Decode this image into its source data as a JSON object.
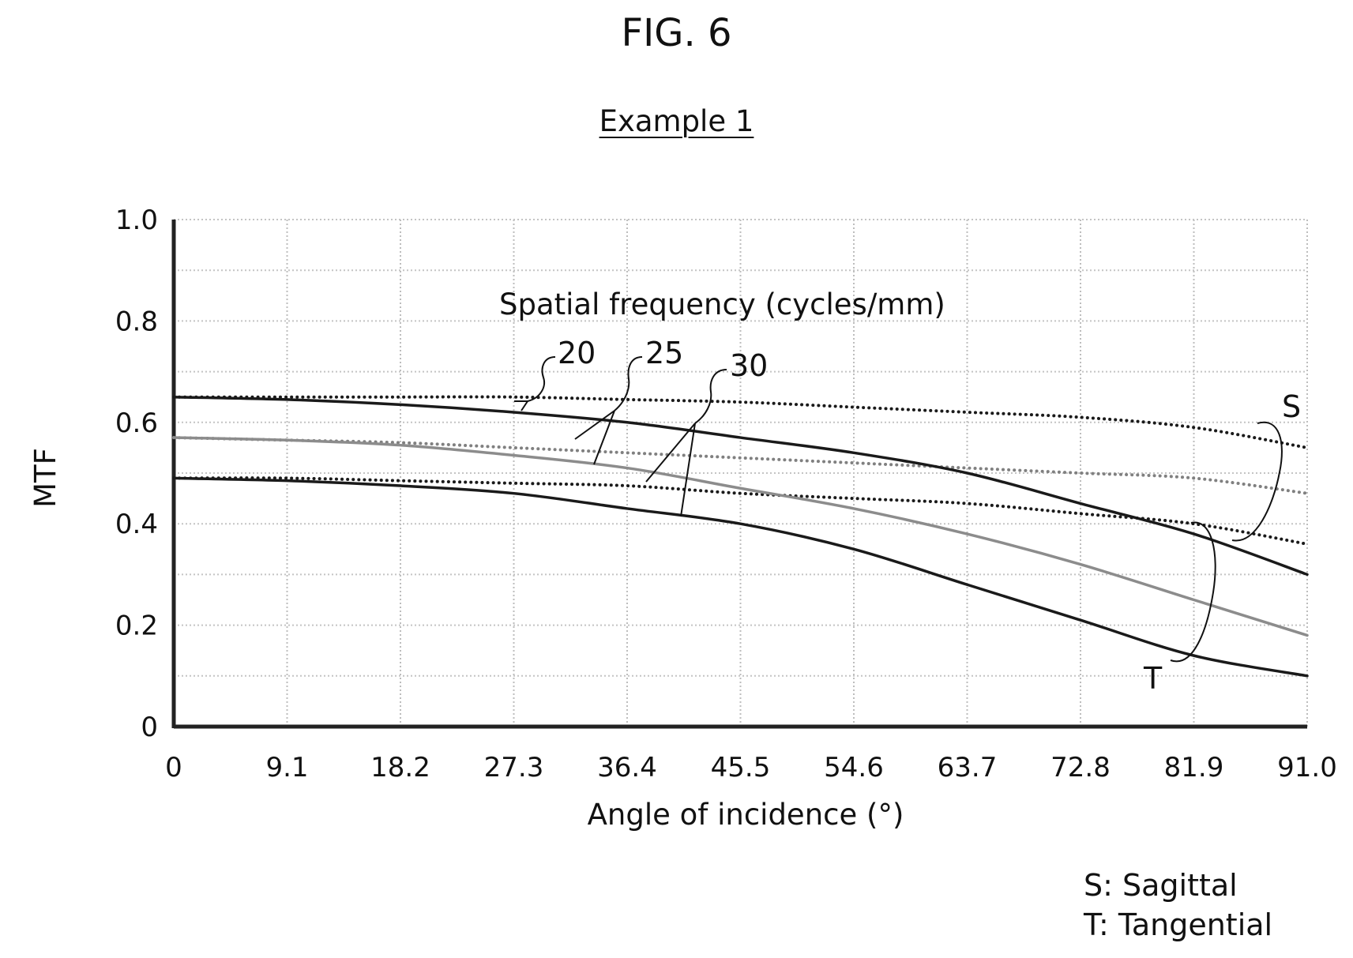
{
  "figure": {
    "title": "FIG. 6",
    "subtitle": "Example 1"
  },
  "legend": {
    "items": [
      {
        "key": "S",
        "label": "S: Sagittal"
      },
      {
        "key": "T",
        "label": "T: Tangential"
      }
    ]
  },
  "annotations": {
    "spatial_frequency_label": "Spatial frequency (cycles/mm)",
    "frequency_20": "20",
    "frequency_25": "25",
    "frequency_30": "30",
    "sagittal_marker": "S",
    "tangential_marker": "T"
  },
  "chart_data": {
    "type": "line",
    "title": "",
    "xlabel": "Angle of incidence (°)",
    "ylabel": "MTF",
    "xlim": [
      0,
      91.0
    ],
    "ylim": [
      0,
      1.0
    ],
    "x_ticks": [
      "0",
      "9.1",
      "18.2",
      "27.3",
      "36.4",
      "45.5",
      "54.6",
      "63.7",
      "72.8",
      "81.9",
      "91.0"
    ],
    "y_ticks": [
      "0",
      "0.2",
      "0.4",
      "0.6",
      "0.8",
      "1.0"
    ],
    "y_tick_values": [
      0,
      0.2,
      0.4,
      0.6,
      0.8,
      1.0
    ],
    "grid": true,
    "legend_placement": "bottom-right",
    "x": [
      0,
      9.1,
      18.2,
      27.3,
      36.4,
      45.5,
      54.6,
      63.7,
      72.8,
      81.9,
      91.0
    ],
    "series": [
      {
        "orientation": "S",
        "frequency": "20",
        "line_style": "dotted",
        "color": "#1a1a1a",
        "values": [
          0.65,
          0.65,
          0.65,
          0.65,
          0.645,
          0.64,
          0.63,
          0.62,
          0.61,
          0.59,
          0.55
        ]
      },
      {
        "orientation": "S",
        "frequency": "25",
        "line_style": "dotted",
        "color": "#808080",
        "values": [
          0.57,
          0.565,
          0.56,
          0.55,
          0.54,
          0.53,
          0.52,
          0.51,
          0.5,
          0.49,
          0.46
        ]
      },
      {
        "orientation": "S",
        "frequency": "30",
        "line_style": "dotted",
        "color": "#1a1a1a",
        "values": [
          0.49,
          0.49,
          0.485,
          0.48,
          0.475,
          0.46,
          0.45,
          0.44,
          0.42,
          0.4,
          0.36
        ]
      },
      {
        "orientation": "T",
        "frequency": "20",
        "line_style": "solid",
        "color": "#1a1a1a",
        "values": [
          0.65,
          0.645,
          0.635,
          0.62,
          0.6,
          0.57,
          0.54,
          0.5,
          0.44,
          0.38,
          0.3
        ]
      },
      {
        "orientation": "T",
        "frequency": "25",
        "line_style": "solid",
        "color": "#8c8c8c",
        "values": [
          0.57,
          0.565,
          0.555,
          0.535,
          0.51,
          0.47,
          0.43,
          0.38,
          0.32,
          0.25,
          0.18
        ]
      },
      {
        "orientation": "T",
        "frequency": "30",
        "line_style": "solid",
        "color": "#1a1a1a",
        "values": [
          0.49,
          0.485,
          0.475,
          0.46,
          0.43,
          0.4,
          0.35,
          0.28,
          0.21,
          0.14,
          0.1
        ]
      }
    ]
  }
}
